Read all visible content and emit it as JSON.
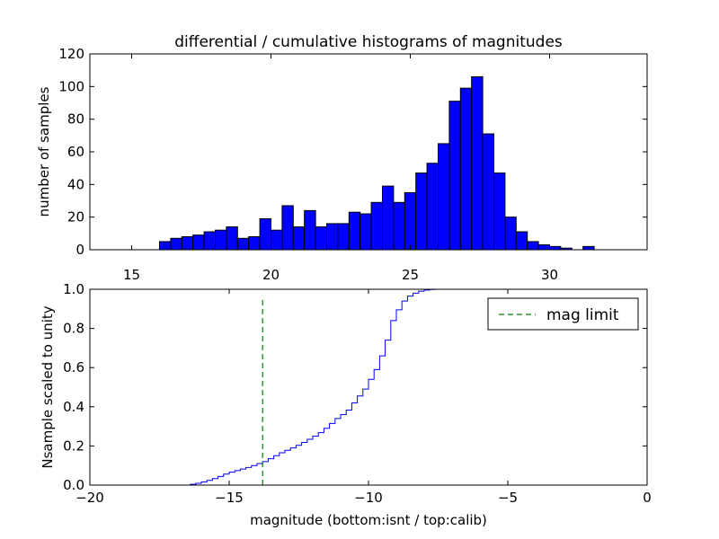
{
  "chart_data": [
    {
      "type": "bar",
      "title": "differential / cumulative histograms of magnitudes",
      "xlabel": "",
      "ylabel": "number of samples",
      "xlim": [
        13.5,
        33.5
      ],
      "ylim": [
        0,
        120
      ],
      "xticks": [
        15,
        20,
        25,
        30
      ],
      "yticks": [
        0,
        20,
        40,
        60,
        80,
        100,
        120
      ],
      "bar_color": "#0000ff",
      "bin_start": 16.0,
      "bin_width": 0.4,
      "values": [
        5,
        7,
        8,
        9,
        11,
        12,
        14,
        7,
        8,
        19,
        12,
        27,
        14,
        24,
        14,
        16,
        16,
        23,
        22,
        29,
        39,
        29,
        35,
        47,
        53,
        65,
        91,
        99,
        106,
        71,
        47,
        20,
        11,
        5,
        3,
        2,
        1,
        0,
        2,
        0
      ]
    },
    {
      "type": "line",
      "title": "",
      "xlabel": "magnitude (bottom:isnt / top:calib)",
      "ylabel": "Nsample scaled to unity",
      "xlim": [
        -20,
        0
      ],
      "ylim": [
        0.0,
        1.0
      ],
      "xticks": [
        -20,
        -15,
        -10,
        -5,
        0
      ],
      "xtick_labels": [
        "−20",
        "−15",
        "−10",
        "−5",
        "0"
      ],
      "yticks": [
        0.0,
        0.2,
        0.4,
        0.6,
        0.8,
        1.0
      ],
      "ytick_labels": [
        "0.0",
        "0.2",
        "0.4",
        "0.6",
        "0.8",
        "1.0"
      ],
      "line_color": "#0000ff",
      "limit_color": "#008000",
      "mag_limit": -13.8,
      "limit_top": 0.95,
      "step_x": [
        -16.8,
        -16.4,
        -16.2,
        -16.0,
        -15.8,
        -15.6,
        -15.4,
        -15.2,
        -15.0,
        -14.8,
        -14.6,
        -14.4,
        -14.2,
        -14.0,
        -13.8,
        -13.6,
        -13.4,
        -13.2,
        -13.0,
        -12.8,
        -12.6,
        -12.4,
        -12.2,
        -12.0,
        -11.8,
        -11.6,
        -11.4,
        -11.2,
        -11.0,
        -10.8,
        -10.6,
        -10.4,
        -10.2,
        -10.0,
        -9.8,
        -9.6,
        -9.4,
        -9.2,
        -9.0,
        -8.8,
        -8.6,
        -8.4,
        -8.2,
        -8.0,
        -7.8,
        -7.6
      ],
      "step_y": [
        0.0,
        0.004,
        0.009,
        0.016,
        0.024,
        0.033,
        0.044,
        0.056,
        0.066,
        0.074,
        0.082,
        0.09,
        0.1,
        0.11,
        0.12,
        0.135,
        0.15,
        0.165,
        0.178,
        0.19,
        0.203,
        0.218,
        0.234,
        0.25,
        0.268,
        0.29,
        0.315,
        0.34,
        0.36,
        0.383,
        0.42,
        0.455,
        0.49,
        0.54,
        0.59,
        0.66,
        0.74,
        0.84,
        0.895,
        0.94,
        0.965,
        0.98,
        0.99,
        0.996,
        0.999,
        1.0
      ],
      "legend": {
        "position": "top-right",
        "label": "mag limit"
      }
    }
  ]
}
